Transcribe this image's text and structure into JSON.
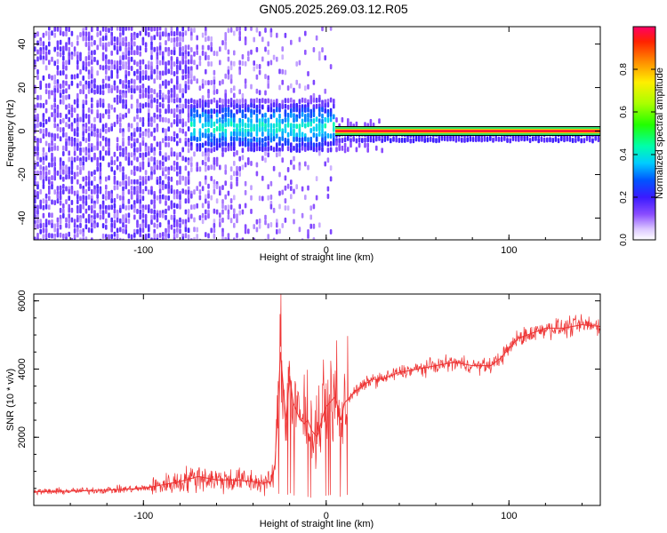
{
  "title": "GN05.2025.269.03.12.R05",
  "colors": {
    "snr_line": "#ee3333",
    "spectrum_low": "#8a4dff",
    "spectrum_peak": "#ff0033",
    "background": "#ffffff"
  },
  "chart_data": [
    {
      "type": "heatmap",
      "xlabel": "Height of straight line (km)",
      "ylabel": "Frequency (Hz)",
      "xlim": [
        -160,
        150
      ],
      "ylim": [
        -50,
        48
      ],
      "x_ticks": [
        -100,
        0,
        100
      ],
      "y_ticks": [
        -40,
        -20,
        0,
        20,
        40
      ],
      "x_tick_labels": [
        "-100",
        "0",
        "100"
      ],
      "y_tick_labels": [
        "-40",
        "-20",
        "0",
        "20",
        "40"
      ],
      "colorbar": {
        "label": "Normalized spectral amplitude",
        "range": [
          0,
          1
        ],
        "ticks": [
          0.0,
          0.2,
          0.4,
          0.6,
          0.8
        ],
        "tick_labels": [
          "0.0",
          "0.2",
          "0.4",
          "0.6",
          "0.8"
        ]
      },
      "carrier_frequency_hz": 0,
      "regions": [
        {
          "x_range": [
            -160,
            -75
          ],
          "character": "broadband noise",
          "amplitude": 0.15
        },
        {
          "x_range": [
            -75,
            5
          ],
          "character": "spread signal",
          "center_freq": 3,
          "amplitude": 0.35
        },
        {
          "x_range": [
            5,
            150
          ],
          "character": "narrow carrier",
          "center_freq": 0,
          "amplitude": 0.95
        }
      ]
    },
    {
      "type": "line",
      "xlabel": "Height of straight line (km)",
      "ylabel": "SNR (10 * v/v)",
      "xlim": [
        -160,
        150
      ],
      "ylim": [
        0,
        6200
      ],
      "x_ticks": [
        -100,
        0,
        100
      ],
      "y_ticks": [
        2000,
        4000,
        6000
      ],
      "x_tick_labels": [
        "-100",
        "0",
        "100"
      ],
      "y_tick_labels": [
        "2000",
        "4000",
        "6000"
      ],
      "series": [
        {
          "x": [
            -160,
            -140,
            -120,
            -100,
            -90,
            -80,
            -70,
            -60,
            -50,
            -40,
            -35,
            -30,
            -28,
            -25,
            -22,
            -20,
            -18,
            -15,
            -12,
            -10,
            -8,
            -5,
            -2,
            0,
            5,
            8,
            10,
            15,
            20,
            25,
            30,
            40,
            50,
            60,
            70,
            80,
            90,
            95,
            100,
            105,
            110,
            120,
            130,
            140,
            150
          ],
          "values": [
            400,
            420,
            450,
            500,
            600,
            700,
            850,
            750,
            750,
            700,
            650,
            700,
            1200,
            4500,
            2500,
            3800,
            3000,
            2600,
            2400,
            2500,
            2200,
            2000,
            2600,
            2900,
            3200,
            2500,
            3000,
            3300,
            3500,
            3700,
            3700,
            3900,
            4000,
            4100,
            4200,
            4100,
            4100,
            4300,
            4600,
            4900,
            5000,
            5200,
            5200,
            5300,
            5250
          ]
        }
      ]
    }
  ]
}
